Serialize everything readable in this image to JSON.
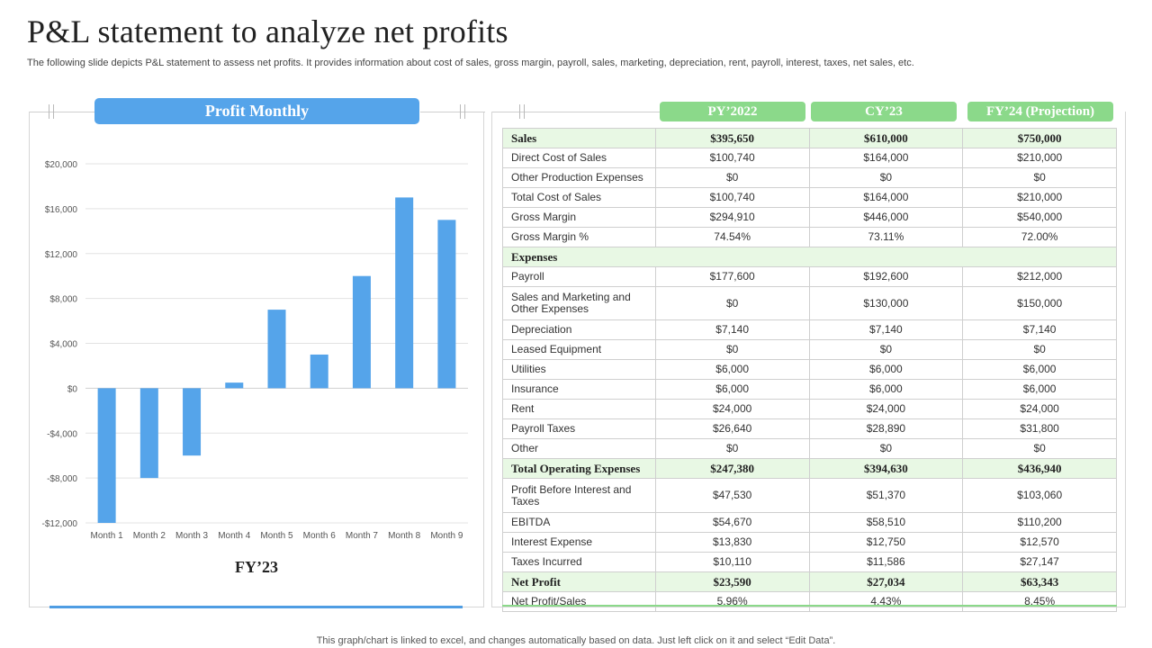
{
  "page": {
    "title": "P&L statement to analyze net profits",
    "subtitle": "The following slide depicts P&L statement to assess net profits. It provides information about cost of sales, gross margin, payroll, sales, marketing, depreciation, rent, payroll, interest, taxes, net sales, etc.",
    "footer": "This graph/chart is linked to excel,  and changes automatically based on data. Just left click on it and select “Edit Data”."
  },
  "colors": {
    "bar": "#55a4ea",
    "header_blue": "#55a4ea",
    "header_green": "#8bd98a",
    "highlight_row": "#e8f8e4"
  },
  "chart_data": {
    "type": "bar",
    "title": "Profit Monthly",
    "xlabel": "FY’23",
    "ylabel": "",
    "categories": [
      "Month 1",
      "Month 2",
      "Month 3",
      "Month 4",
      "Month 5",
      "Month 6",
      "Month 7",
      "Month 8",
      "Month 9"
    ],
    "values": [
      -12000,
      -8000,
      -6000,
      500,
      7000,
      3000,
      10000,
      17000,
      15000
    ],
    "ylim": [
      -12000,
      20000
    ],
    "yticks": [
      20000,
      16000,
      12000,
      8000,
      4000,
      0,
      -4000,
      -8000,
      -12000
    ],
    "ytick_labels": [
      "$20,000",
      "$16,000",
      "$12,000",
      "$8,000",
      "$4,000",
      "$0",
      "-$4,000",
      "-$8,000",
      "-$12,000"
    ],
    "grid": true,
    "legend": "none"
  },
  "table": {
    "columns": [
      "PY’2022",
      "CY’23",
      "FY’24 (Projection)"
    ],
    "rows": [
      {
        "label": "Sales",
        "values": [
          "$395,650",
          "$610,000",
          "$750,000"
        ],
        "style": "hl"
      },
      {
        "label": "Direct Cost of Sales",
        "values": [
          "$100,740",
          "$164,000",
          "$210,000"
        ],
        "style": ""
      },
      {
        "label": "Other Production Expenses",
        "values": [
          "$0",
          "$0",
          "$0"
        ],
        "style": ""
      },
      {
        "label": "Total Cost of Sales",
        "values": [
          "$100,740",
          "$164,000",
          "$210,000"
        ],
        "style": ""
      },
      {
        "label": "Gross Margin",
        "values": [
          "$294,910",
          "$446,000",
          "$540,000"
        ],
        "style": ""
      },
      {
        "label": "Gross Margin %",
        "values": [
          "74.54%",
          "73.11%",
          "72.00%"
        ],
        "style": ""
      },
      {
        "label": "Expenses",
        "values": [],
        "style": "sec"
      },
      {
        "label": "Payroll",
        "values": [
          "$177,600",
          "$192,600",
          "$212,000"
        ],
        "style": ""
      },
      {
        "label": "Sales and Marketing and Other Expenses",
        "values": [
          "$0",
          "$130,000",
          "$150,000"
        ],
        "style": "tall"
      },
      {
        "label": "Depreciation",
        "values": [
          "$7,140",
          "$7,140",
          "$7,140"
        ],
        "style": ""
      },
      {
        "label": "Leased Equipment",
        "values": [
          "$0",
          "$0",
          "$0"
        ],
        "style": ""
      },
      {
        "label": "Utilities",
        "values": [
          "$6,000",
          "$6,000",
          "$6,000"
        ],
        "style": ""
      },
      {
        "label": "Insurance",
        "values": [
          "$6,000",
          "$6,000",
          "$6,000"
        ],
        "style": ""
      },
      {
        "label": "Rent",
        "values": [
          "$24,000",
          "$24,000",
          "$24,000"
        ],
        "style": ""
      },
      {
        "label": "Payroll Taxes",
        "values": [
          "$26,640",
          "$28,890",
          "$31,800"
        ],
        "style": ""
      },
      {
        "label": "Other",
        "values": [
          "$0",
          "$0",
          "$0"
        ],
        "style": ""
      },
      {
        "label": "Total Operating Expenses",
        "values": [
          "$247,380",
          "$394,630",
          "$436,940"
        ],
        "style": "hl"
      },
      {
        "label": "Profit Before Interest and Taxes",
        "values": [
          "$47,530",
          "$51,370",
          "$103,060"
        ],
        "style": "tall2"
      },
      {
        "label": "EBITDA",
        "values": [
          "$54,670",
          "$58,510",
          "$110,200"
        ],
        "style": ""
      },
      {
        "label": "Interest Expense",
        "values": [
          "$13,830",
          "$12,750",
          "$12,570"
        ],
        "style": ""
      },
      {
        "label": "Taxes Incurred",
        "values": [
          "$10,110",
          "$11,586",
          "$27,147"
        ],
        "style": ""
      },
      {
        "label": "Net Profit",
        "values": [
          "$23,590",
          "$27,034",
          "$63,343"
        ],
        "style": "hl"
      },
      {
        "label": "Net Profit/Sales",
        "values": [
          "5.96%",
          "4.43%",
          "8.45%"
        ],
        "style": ""
      }
    ]
  }
}
